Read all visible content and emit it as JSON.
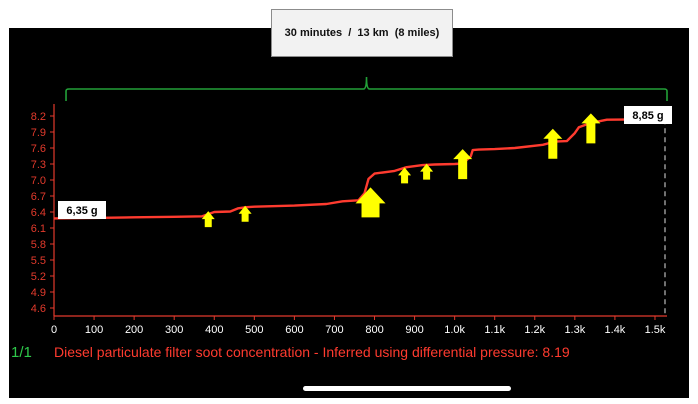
{
  "annotation": {
    "summary": "30 minutes  /  13 km  (8 miles)"
  },
  "page_indicator": "1/1",
  "colors": {
    "background": "#000000",
    "axis": "#e33a2c",
    "series": "#ff3b2f",
    "bracket": "#22a038",
    "arrow": "#ffff00",
    "page_indicator": "#2ec94a",
    "label_box": "#ffffff"
  },
  "chart_data": {
    "type": "line",
    "title": "Diesel particulate filter soot concentration  -  Inferred using differential pressure: 8.19",
    "xlabel": "",
    "ylabel": "",
    "xlim": [
      0,
      1530
    ],
    "ylim": [
      4.45,
      8.35
    ],
    "x_tick_labels": [
      "0",
      "100",
      "200",
      "300",
      "400",
      "500",
      "600",
      "700",
      "800",
      "900",
      "1.0k",
      "1.1k",
      "1.2k",
      "1.3k",
      "1.4k",
      "1.5k"
    ],
    "x_tick_values": [
      0,
      100,
      200,
      300,
      400,
      500,
      600,
      700,
      800,
      900,
      1000,
      1100,
      1200,
      1300,
      1400,
      1500
    ],
    "y_ticks": [
      4.6,
      4.9,
      5.2,
      5.5,
      5.8,
      6.1,
      6.4,
      6.7,
      7.0,
      7.3,
      7.6,
      7.9,
      8.2
    ],
    "series": [
      {
        "x": [
          0,
          100,
          200,
          300,
          370,
          400,
          440,
          460,
          480,
          500,
          600,
          680,
          720,
          760,
          775,
          785,
          800,
          850,
          880,
          920,
          950,
          1000,
          1020,
          1040,
          1045,
          1060,
          1100,
          1150,
          1220,
          1250,
          1280,
          1300,
          1310,
          1340,
          1380,
          1500,
          1525
        ],
        "y": [
          6.28,
          6.29,
          6.3,
          6.31,
          6.32,
          6.4,
          6.41,
          6.47,
          6.49,
          6.5,
          6.52,
          6.55,
          6.6,
          6.62,
          6.75,
          7.02,
          7.12,
          7.17,
          7.24,
          7.28,
          7.29,
          7.3,
          7.31,
          7.44,
          7.56,
          7.57,
          7.58,
          7.6,
          7.66,
          7.72,
          7.73,
          7.88,
          7.99,
          8.07,
          8.13,
          8.14,
          8.14
        ]
      }
    ],
    "annotations": {
      "start_value": "6,35 g",
      "end_value": "8,85 g"
    },
    "arrows": [
      {
        "x": 385,
        "value": 6.38,
        "size": "small"
      },
      {
        "x": 477,
        "value": 6.48,
        "size": "small"
      },
      {
        "x": 790,
        "value": 6.75,
        "size": "large"
      },
      {
        "x": 875,
        "value": 7.2,
        "size": "small"
      },
      {
        "x": 930,
        "value": 7.27,
        "size": "small"
      },
      {
        "x": 1020,
        "value": 7.28,
        "size": "medium"
      },
      {
        "x": 1245,
        "value": 7.66,
        "size": "medium"
      },
      {
        "x": 1340,
        "value": 7.95,
        "size": "medium"
      }
    ],
    "grid": false,
    "legend": "none"
  }
}
